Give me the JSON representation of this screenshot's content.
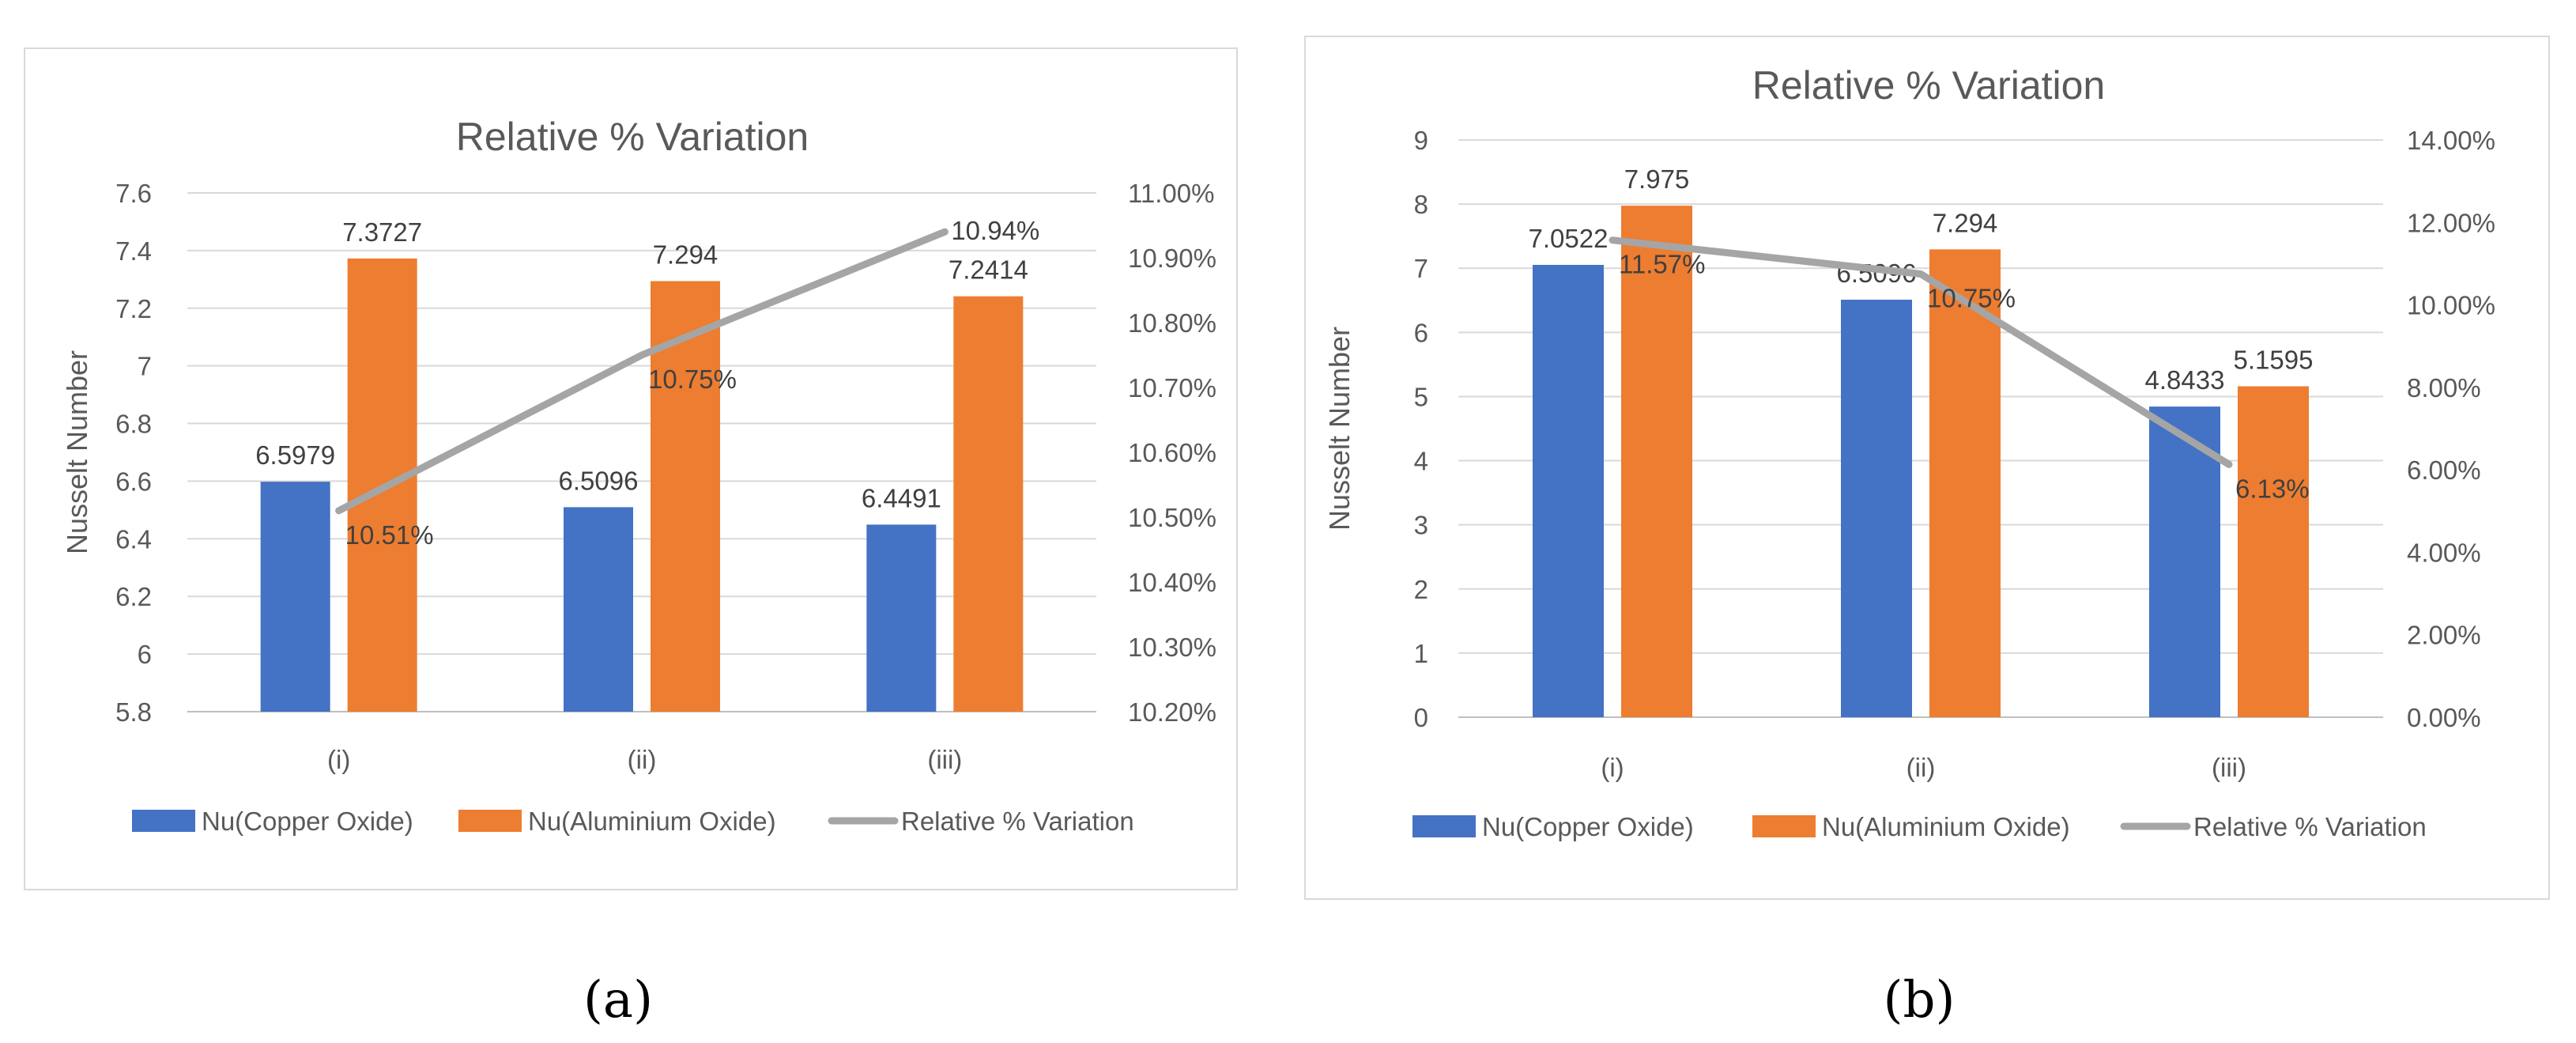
{
  "chart_data": [
    {
      "id": "a",
      "type": "bar+line",
      "title": "Relative % Variation",
      "subfigure_label": "(a)",
      "categories": [
        "(i)",
        "(ii)",
        "(iii)"
      ],
      "ylabel": "Nusselt Number",
      "ylim": [
        5.8,
        7.6
      ],
      "yticks": [
        "7.6",
        "7.4",
        "7.2",
        "7",
        "6.8",
        "6.6",
        "6.4",
        "6.2",
        "6",
        "5.8"
      ],
      "y2lim": [
        10.2,
        11.0
      ],
      "y2ticks": [
        "11.00%",
        "10.90%",
        "10.80%",
        "10.70%",
        "10.60%",
        "10.50%",
        "10.40%",
        "10.30%",
        "10.20%"
      ],
      "series": [
        {
          "name": "Nu(Copper Oxide)",
          "kind": "bar",
          "color": "#4472c4",
          "values": [
            6.5979,
            6.5096,
            6.4491
          ],
          "labels": [
            "6.5979",
            "6.5096",
            "6.4491"
          ]
        },
        {
          "name": "Nu(Aluminium Oxide)",
          "kind": "bar",
          "color": "#ed7d31",
          "values": [
            7.3727,
            7.294,
            7.2414
          ],
          "labels": [
            "7.3727",
            "7.294",
            "7.2414"
          ]
        },
        {
          "name": "Relative % Variation",
          "kind": "line",
          "axis": "secondary",
          "color": "#a5a5a5",
          "values": [
            10.51,
            10.75,
            10.94
          ],
          "labels": [
            "10.51%",
            "10.75%",
            "10.94%"
          ]
        }
      ],
      "legend_position": "bottom"
    },
    {
      "id": "b",
      "type": "bar+line",
      "title": "Relative % Variation",
      "subfigure_label": "(b)",
      "categories": [
        "(i)",
        "(ii)",
        "(iii)"
      ],
      "ylabel": "Nusselt Number",
      "ylim": [
        0,
        9
      ],
      "yticks": [
        "9",
        "8",
        "7",
        "6",
        "5",
        "4",
        "3",
        "2",
        "1",
        "0"
      ],
      "y2lim": [
        0,
        14
      ],
      "y2ticks": [
        "14.00%",
        "12.00%",
        "10.00%",
        "8.00%",
        "6.00%",
        "4.00%",
        "2.00%",
        "0.00%"
      ],
      "series": [
        {
          "name": "Nu(Copper Oxide)",
          "kind": "bar",
          "color": "#4472c4",
          "values": [
            7.0522,
            6.5096,
            4.8433
          ],
          "labels": [
            "7.0522",
            "6.5096",
            "4.8433"
          ]
        },
        {
          "name": "Nu(Aluminium Oxide)",
          "kind": "bar",
          "color": "#ed7d31",
          "values": [
            7.975,
            7.294,
            5.1595
          ],
          "labels": [
            "7.975",
            "7.294",
            "5.1595"
          ]
        },
        {
          "name": "Relative % Variation",
          "kind": "line",
          "axis": "secondary",
          "color": "#a5a5a5",
          "values": [
            11.57,
            10.75,
            6.13
          ],
          "labels": [
            "11.57%",
            "10.75%",
            "6.13%"
          ]
        }
      ],
      "legend_position": "bottom"
    }
  ]
}
